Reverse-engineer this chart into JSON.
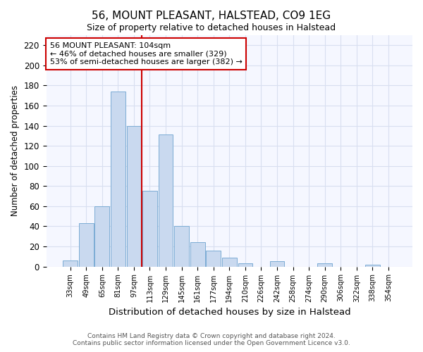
{
  "title": "56, MOUNT PLEASANT, HALSTEAD, CO9 1EG",
  "subtitle": "Size of property relative to detached houses in Halstead",
  "xlabel": "Distribution of detached houses by size in Halstead",
  "ylabel": "Number of detached properties",
  "bar_labels": [
    "33sqm",
    "49sqm",
    "65sqm",
    "81sqm",
    "97sqm",
    "113sqm",
    "129sqm",
    "145sqm",
    "161sqm",
    "177sqm",
    "194sqm",
    "210sqm",
    "226sqm",
    "242sqm",
    "258sqm",
    "274sqm",
    "290sqm",
    "306sqm",
    "322sqm",
    "338sqm",
    "354sqm"
  ],
  "bar_values": [
    6,
    43,
    60,
    174,
    140,
    75,
    131,
    40,
    24,
    16,
    9,
    3,
    0,
    5,
    0,
    0,
    3,
    0,
    0,
    2,
    0
  ],
  "bar_color": "#c9d9ef",
  "bar_edge_color": "#7bacd4",
  "vline_x": 4.5,
  "vline_color": "#cc0000",
  "ylim": [
    0,
    230
  ],
  "yticks": [
    0,
    20,
    40,
    60,
    80,
    100,
    120,
    140,
    160,
    180,
    200,
    220
  ],
  "annotation_title": "56 MOUNT PLEASANT: 104sqm",
  "annotation_line1": "← 46% of detached houses are smaller (329)",
  "annotation_line2": "53% of semi-detached houses are larger (382) →",
  "annotation_box_color": "#ffffff",
  "annotation_box_edge": "#cc0000",
  "footer_line1": "Contains HM Land Registry data © Crown copyright and database right 2024.",
  "footer_line2": "Contains public sector information licensed under the Open Government Licence v3.0.",
  "bg_color": "#ffffff",
  "plot_bg_color": "#f5f7ff",
  "grid_color": "#d8dff0"
}
